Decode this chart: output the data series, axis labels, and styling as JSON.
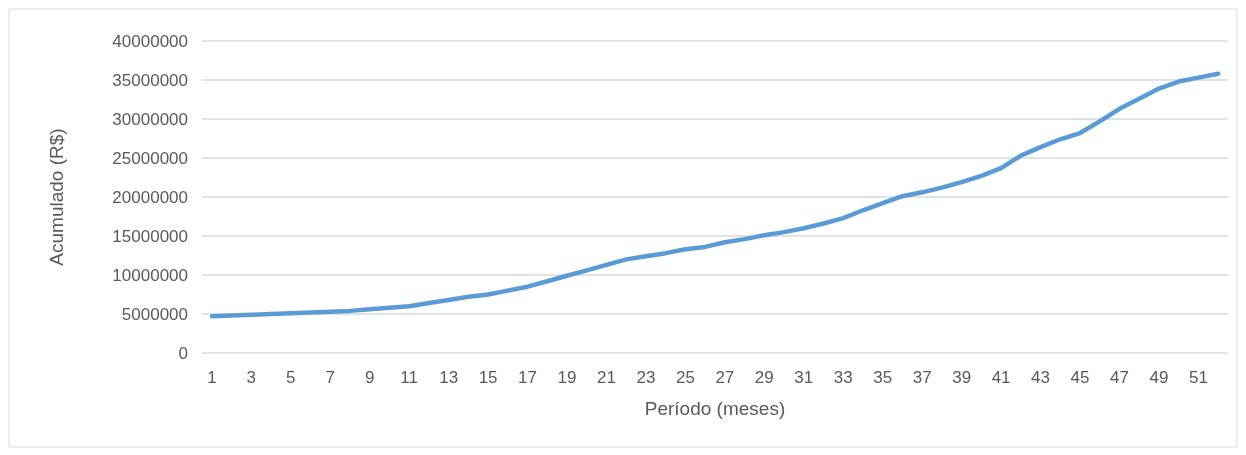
{
  "chart_data": {
    "type": "line",
    "xlabel": "Período (meses)",
    "ylabel": "Acumulado (R$)",
    "x": [
      1,
      2,
      3,
      4,
      5,
      6,
      7,
      8,
      9,
      10,
      11,
      12,
      13,
      14,
      15,
      16,
      17,
      18,
      19,
      20,
      21,
      22,
      23,
      24,
      25,
      26,
      27,
      28,
      29,
      30,
      31,
      32,
      33,
      34,
      35,
      36,
      37,
      38,
      39,
      40,
      41,
      42,
      43,
      44,
      45,
      46,
      47,
      48,
      49,
      50,
      51,
      52
    ],
    "xlim": [
      0.5,
      52.5
    ],
    "xticks": [
      1,
      3,
      5,
      7,
      9,
      11,
      13,
      15,
      17,
      19,
      21,
      23,
      25,
      27,
      29,
      31,
      33,
      35,
      37,
      39,
      41,
      43,
      45,
      47,
      49,
      51
    ],
    "series": [
      {
        "color": "#5b9bd5",
        "values": [
          4700000,
          4800000,
          4900000,
          5000000,
          5100000,
          5200000,
          5300000,
          5400000,
          5600000,
          5800000,
          6000000,
          6400000,
          6800000,
          7200000,
          7500000,
          8000000,
          8500000,
          9200000,
          9900000,
          10600000,
          11300000,
          12000000,
          12400000,
          12800000,
          13300000,
          13600000,
          14200000,
          14600000,
          15100000,
          15500000,
          16000000,
          16600000,
          17300000,
          18300000,
          19200000,
          20100000,
          20600000,
          21200000,
          21900000,
          22700000,
          23700000,
          25300000,
          26400000,
          27400000,
          28200000,
          29700000,
          31300000,
          32600000,
          33900000,
          34800000,
          35300000,
          35800000
        ]
      }
    ],
    "ylim": [
      0,
      40000000
    ],
    "yticks": [
      0,
      5000000,
      10000000,
      15000000,
      20000000,
      25000000,
      30000000,
      35000000,
      40000000
    ],
    "grid": "y",
    "marker": "none",
    "line_style": "solid"
  }
}
